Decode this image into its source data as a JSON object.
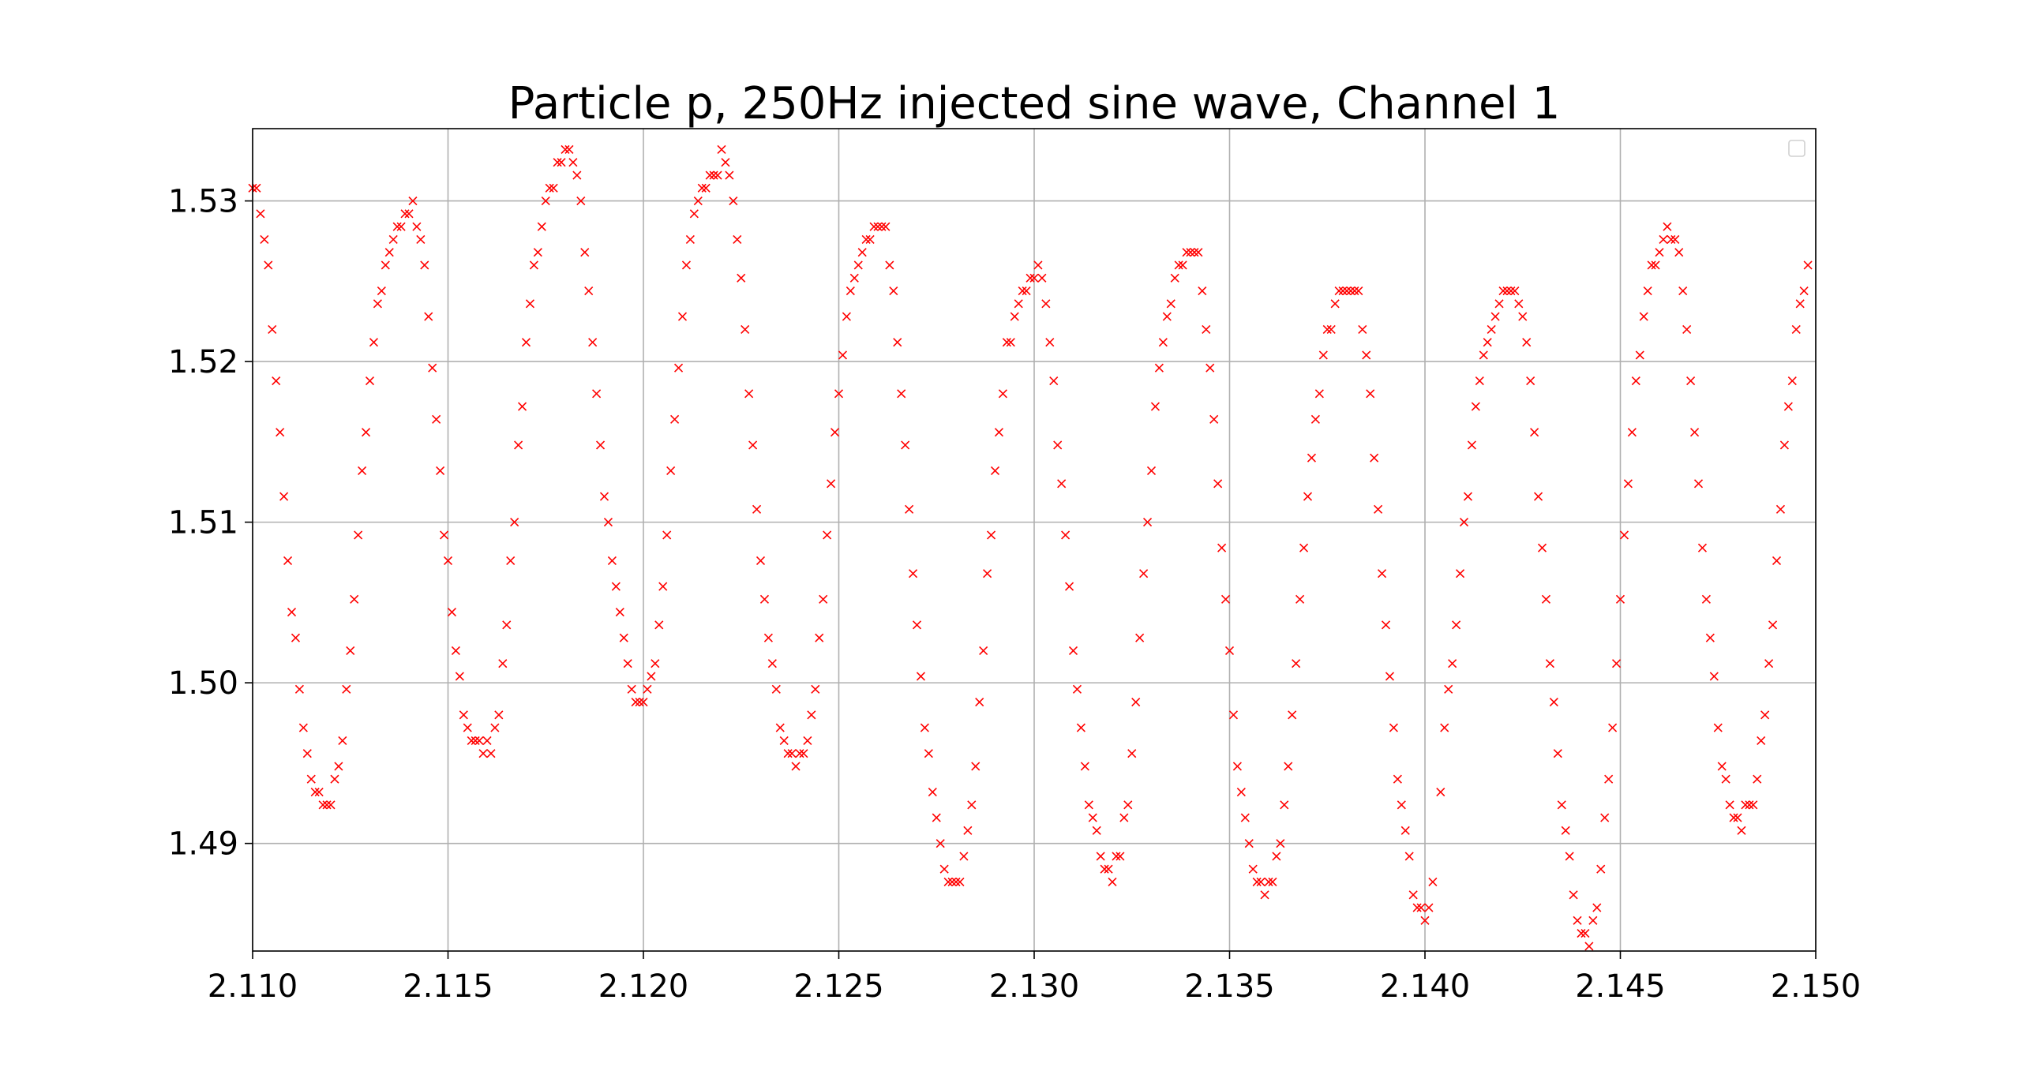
{
  "chart_data": {
    "type": "scatter",
    "title": "Particle p, 250Hz injected sine wave, Channel 1",
    "xlabel": "",
    "ylabel": "",
    "xlim": [
      2.11,
      2.15
    ],
    "ylim": [
      1.4833,
      1.5345
    ],
    "x_ticks": [
      2.11,
      2.115,
      2.12,
      2.125,
      2.13,
      2.135,
      2.14,
      2.145,
      2.15
    ],
    "x_tick_labels": [
      "2.110",
      "2.115",
      "2.120",
      "2.125",
      "2.130",
      "2.135",
      "2.140",
      "2.145",
      "2.150"
    ],
    "y_ticks": [
      1.49,
      1.5,
      1.51,
      1.52,
      1.53
    ],
    "y_tick_labels": [
      "1.49",
      "1.50",
      "1.51",
      "1.52",
      "1.53"
    ],
    "grid": true,
    "legend": "upper-right (empty)",
    "marker": "x",
    "color": "#ff0000",
    "sampling_interval": 0.0001,
    "x_start": 2.11,
    "y": [
      1.5308,
      1.5308,
      1.5292,
      1.5276,
      1.526,
      1.522,
      1.5188,
      1.5156,
      1.5116,
      1.5076,
      1.5044,
      1.5028,
      1.4996,
      1.4972,
      1.4956,
      1.494,
      1.4932,
      1.4932,
      1.4924,
      1.4924,
      1.4924,
      1.494,
      1.4948,
      1.4964,
      1.4996,
      1.502,
      1.5052,
      1.5092,
      1.5132,
      1.5156,
      1.5188,
      1.5212,
      1.5236,
      1.5244,
      1.526,
      1.5268,
      1.5276,
      1.5284,
      1.5284,
      1.5292,
      1.5292,
      1.53,
      1.5284,
      1.5276,
      1.526,
      1.5228,
      1.5196,
      1.5164,
      1.5132,
      1.5092,
      1.5076,
      1.5044,
      1.502,
      1.5004,
      1.498,
      1.4972,
      1.4964,
      1.4964,
      1.4964,
      1.4956,
      1.4964,
      1.4956,
      1.4972,
      1.498,
      1.5012,
      1.5036,
      1.5076,
      1.51,
      1.5148,
      1.5172,
      1.5212,
      1.5236,
      1.526,
      1.5268,
      1.5284,
      1.53,
      1.5308,
      1.5308,
      1.5324,
      1.5324,
      1.5332,
      1.5332,
      1.5324,
      1.5316,
      1.53,
      1.5268,
      1.5244,
      1.5212,
      1.518,
      1.5148,
      1.5116,
      1.51,
      1.5076,
      1.506,
      1.5044,
      1.5028,
      1.5012,
      1.4996,
      1.4988,
      1.4988,
      1.4988,
      1.4996,
      1.5004,
      1.5012,
      1.5036,
      1.506,
      1.5092,
      1.5132,
      1.5164,
      1.5196,
      1.5228,
      1.526,
      1.5276,
      1.5292,
      1.53,
      1.5308,
      1.5308,
      1.5316,
      1.5316,
      1.5316,
      1.5332,
      1.5324,
      1.5316,
      1.53,
      1.5276,
      1.5252,
      1.522,
      1.518,
      1.5148,
      1.5108,
      1.5076,
      1.5052,
      1.5028,
      1.5012,
      1.4996,
      1.4972,
      1.4964,
      1.4956,
      1.4956,
      1.4948,
      1.4956,
      1.4956,
      1.4964,
      1.498,
      1.4996,
      1.5028,
      1.5052,
      1.5092,
      1.5124,
      1.5156,
      1.518,
      1.5204,
      1.5228,
      1.5244,
      1.5252,
      1.526,
      1.5268,
      1.5276,
      1.5276,
      1.5284,
      1.5284,
      1.5284,
      1.5284,
      1.526,
      1.5244,
      1.5212,
      1.518,
      1.5148,
      1.5108,
      1.5068,
      1.5036,
      1.5004,
      1.4972,
      1.4956,
      1.4932,
      1.4916,
      1.49,
      1.4884,
      1.4876,
      1.4876,
      1.4876,
      1.4876,
      1.4892,
      1.4908,
      1.4924,
      1.4948,
      1.4988,
      1.502,
      1.5068,
      1.5092,
      1.5132,
      1.5156,
      1.518,
      1.5212,
      1.5212,
      1.5228,
      1.5236,
      1.5244,
      1.5244,
      1.5252,
      1.5252,
      1.526,
      1.5252,
      1.5236,
      1.5212,
      1.5188,
      1.5148,
      1.5124,
      1.5092,
      1.506,
      1.502,
      1.4996,
      1.4972,
      1.4948,
      1.4924,
      1.4916,
      1.4908,
      1.4892,
      1.4884,
      1.4884,
      1.4876,
      1.4892,
      1.4892,
      1.4916,
      1.4924,
      1.4956,
      1.4988,
      1.5028,
      1.5068,
      1.51,
      1.5132,
      1.5172,
      1.5196,
      1.5212,
      1.5228,
      1.5236,
      1.5252,
      1.526,
      1.526,
      1.5268,
      1.5268,
      1.5268,
      1.5268,
      1.5244,
      1.522,
      1.5196,
      1.5164,
      1.5124,
      1.5084,
      1.5052,
      1.502,
      1.498,
      1.4948,
      1.4932,
      1.4916,
      1.49,
      1.4884,
      1.4876,
      1.4876,
      1.4868,
      1.4876,
      1.4876,
      1.4892,
      1.49,
      1.4924,
      1.4948,
      1.498,
      1.5012,
      1.5052,
      1.5084,
      1.5116,
      1.514,
      1.5164,
      1.518,
      1.5204,
      1.522,
      1.522,
      1.5236,
      1.5244,
      1.5244,
      1.5244,
      1.5244,
      1.5244,
      1.5244,
      1.522,
      1.5204,
      1.518,
      1.514,
      1.5108,
      1.5068,
      1.5036,
      1.5004,
      1.4972,
      1.494,
      1.4924,
      1.4908,
      1.4892,
      1.4868,
      1.486,
      1.486,
      1.4852,
      1.486,
      1.4876,
      null,
      1.4932,
      1.4972,
      1.4996,
      1.5012,
      1.5036,
      1.5068,
      1.51,
      1.5116,
      1.5148,
      1.5172,
      1.5188,
      1.5204,
      1.5212,
      1.522,
      1.5228,
      1.5236,
      1.5244,
      1.5244,
      1.5244,
      1.5244,
      1.5236,
      1.5228,
      1.5212,
      1.5188,
      1.5156,
      1.5116,
      1.5084,
      1.5052,
      1.5012,
      1.4988,
      1.4956,
      1.4924,
      1.4908,
      1.4892,
      1.4868,
      1.4852,
      1.4844,
      1.4844,
      1.4836,
      1.4852,
      1.486,
      1.4884,
      1.4916,
      1.494,
      1.4972,
      1.5012,
      1.5052,
      1.5092,
      1.5124,
      1.5156,
      1.5188,
      1.5204,
      1.5228,
      1.5244,
      1.526,
      1.526,
      1.5268,
      1.5276,
      1.5284,
      1.5276,
      1.5276,
      1.5268,
      1.5244,
      1.522,
      1.5188,
      1.5156,
      1.5124,
      1.5084,
      1.5052,
      1.5028,
      1.5004,
      1.4972,
      1.4948,
      1.494,
      1.4924,
      1.4916,
      1.4916,
      1.4908,
      1.4924,
      1.4924,
      1.4924,
      1.494,
      1.4964,
      1.498,
      1.5012,
      1.5036,
      1.5076,
      1.5108,
      1.5148,
      1.5172,
      1.5188,
      1.522,
      1.5236,
      1.5244,
      1.526
    ]
  }
}
